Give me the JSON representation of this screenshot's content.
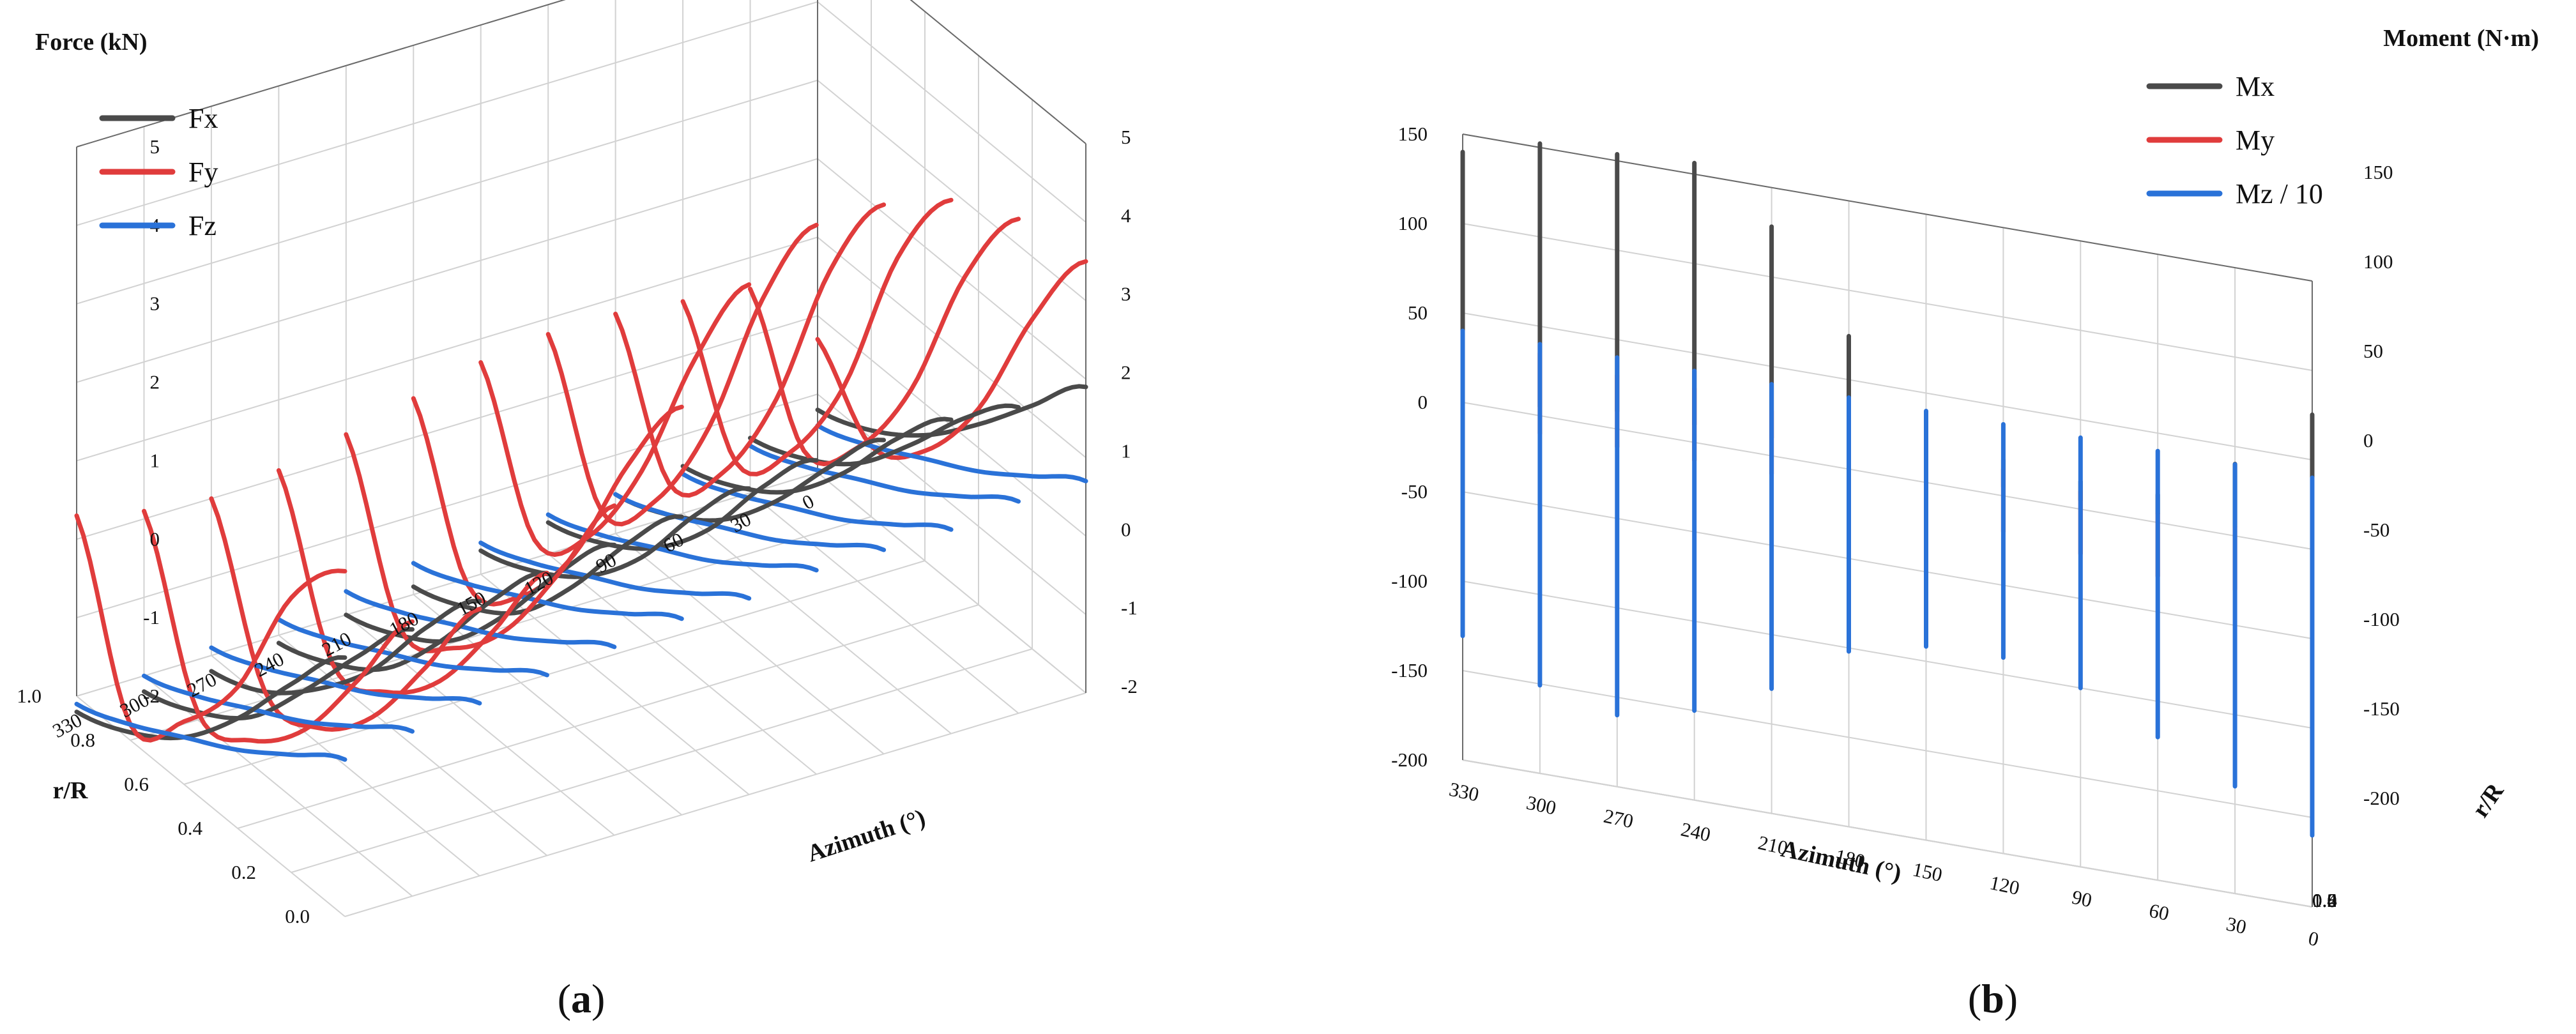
{
  "chart_data": [
    {
      "type": "line",
      "panel": "(a)",
      "panel_letter": "a",
      "zlabel": "Force (kN)",
      "xlabel": "r/R",
      "ylabel": "Azimuth (°)",
      "x_ticks": [
        "0.0",
        "0.2",
        "0.4",
        "0.6",
        "0.8",
        "1.0"
      ],
      "y_ticks": [
        "0",
        "30",
        "60",
        "90",
        "120",
        "150",
        "180",
        "210",
        "240",
        "270",
        "300",
        "330"
      ],
      "z_ticks": [
        "-2",
        "-1",
        "0",
        "1",
        "2",
        "3",
        "4",
        "5"
      ],
      "xlim": [
        0,
        1
      ],
      "ylim": [
        0,
        330
      ],
      "zlim": [
        -2,
        5
      ],
      "legend_position": "top-left",
      "azimuths": [
        330,
        300,
        270,
        240,
        210,
        180,
        150,
        120,
        90,
        60,
        30,
        0
      ],
      "r_over_R": [
        0.0,
        0.2,
        0.4,
        0.6,
        0.8,
        1.0
      ],
      "series": [
        {
          "name": "Fx",
          "color": "#4a4a4a",
          "profiles": [
            [
              1.3,
              0.4,
              -0.6,
              -1.4,
              -1.9,
              -2.2
            ],
            [
              1.4,
              0.5,
              -0.5,
              -1.4,
              -1.9,
              -2.2
            ],
            [
              1.5,
              0.6,
              -0.5,
              -1.3,
              -1.9,
              -2.2
            ],
            [
              1.6,
              0.7,
              -0.4,
              -1.3,
              -1.8,
              -2.1
            ],
            [
              1.7,
              0.8,
              -0.3,
              -1.2,
              -1.7,
              -2.0
            ],
            [
              1.8,
              0.9,
              -0.2,
              -1.1,
              -1.6,
              -1.9
            ],
            [
              1.9,
              1.0,
              -0.1,
              -0.9,
              -1.4,
              -1.7
            ],
            [
              2.0,
              1.1,
              0.0,
              -0.8,
              -1.3,
              -1.6
            ],
            [
              2.0,
              1.1,
              0.1,
              -0.7,
              -1.2,
              -1.5
            ],
            [
              2.0,
              1.2,
              0.2,
              -0.6,
              -1.1,
              -1.4
            ],
            [
              1.9,
              1.2,
              0.3,
              -0.5,
              -1.0,
              -1.3
            ],
            [
              1.9,
              1.1,
              0.3,
              -0.4,
              -0.9,
              -1.2
            ]
          ]
        },
        {
          "name": "Fy",
          "color": "#e03c3c",
          "profiles": [
            [
              2.4,
              1.5,
              -0.2,
              -1.2,
              -1.8,
              0.3
            ],
            [
              1.5,
              0.2,
              -1.0,
              -1.7,
              -1.9,
              0.1
            ],
            [
              1.4,
              0.1,
              -1.1,
              -1.8,
              -1.9,
              0.0
            ],
            [
              1.6,
              0.3,
              -0.9,
              -1.6,
              -1.8,
              0.1
            ],
            [
              2.2,
              0.8,
              -0.5,
              -1.3,
              -1.6,
              0.3
            ],
            [
              3.2,
              1.9,
              0.2,
              -0.9,
              -1.3,
              0.5
            ],
            [
              4.5,
              3.0,
              1.0,
              -0.4,
              -1.0,
              0.7
            ],
            [
              5.0,
              3.5,
              1.3,
              -0.2,
              -0.9,
              0.8
            ],
            [
              5.0,
              3.6,
              1.4,
              -0.1,
              -0.8,
              0.8
            ],
            [
              4.8,
              3.5,
              1.3,
              -0.1,
              -0.8,
              0.7
            ],
            [
              4.3,
              3.0,
              1.0,
              -0.3,
              -0.9,
              0.6
            ],
            [
              3.5,
              2.2,
              0.5,
              -0.6,
              -1.1,
              -0.3
            ]
          ]
        },
        {
          "name": "Fz",
          "color": "#2a72d8",
          "profiles": [
            [
              0.0,
              -0.5,
              -1.0,
              -1.4,
              -1.8,
              -2.1
            ],
            [
              0.1,
              -0.4,
              -0.9,
              -1.3,
              -1.7,
              -2.0
            ],
            [
              0.2,
              -0.3,
              -0.8,
              -1.2,
              -1.6,
              -1.9
            ],
            [
              0.3,
              -0.2,
              -0.7,
              -1.1,
              -1.5,
              -1.8
            ],
            [
              0.4,
              -0.1,
              -0.6,
              -1.0,
              -1.4,
              -1.7
            ],
            [
              0.5,
              0.0,
              -0.5,
              -0.9,
              -1.3,
              -1.6
            ],
            [
              0.5,
              0.0,
              -0.5,
              -0.9,
              -1.3,
              -1.6
            ],
            [
              0.6,
              0.1,
              -0.4,
              -0.8,
              -1.2,
              -1.5
            ],
            [
              0.6,
              0.1,
              -0.4,
              -0.8,
              -1.2,
              -1.5
            ],
            [
              0.6,
              0.1,
              -0.4,
              -0.8,
              -1.2,
              -1.5
            ],
            [
              0.7,
              0.2,
              -0.3,
              -0.7,
              -1.1,
              -1.4
            ],
            [
              0.7,
              0.2,
              -0.3,
              -0.7,
              -1.1,
              -1.4
            ]
          ]
        }
      ]
    },
    {
      "type": "line",
      "panel": "(b)",
      "panel_letter": "b",
      "zlabel": "Moment (N·m)",
      "xlabel": "r/R",
      "ylabel": "Azimuth (°)",
      "x_ticks": [
        "0.0",
        "0.2",
        "0.4",
        "0.6",
        "0.8",
        "1.0"
      ],
      "y_ticks": [
        "0",
        "30",
        "60",
        "90",
        "120",
        "150",
        "180",
        "210",
        "240",
        "270",
        "300",
        "330"
      ],
      "z_ticks_left": [
        "-200",
        "-150",
        "-100",
        "-50",
        "0",
        "50",
        "100",
        "150"
      ],
      "z_ticks_right": [
        "-200",
        "-150",
        "-100",
        "-50",
        "0",
        "50",
        "100",
        "150"
      ],
      "xlim": [
        0,
        1
      ],
      "ylim": [
        0,
        330
      ],
      "zlim": [
        -200,
        150
      ],
      "legend_position": "top-right",
      "azimuths": [
        330,
        300,
        270,
        240,
        210,
        180,
        150,
        120,
        90,
        60,
        30,
        0
      ],
      "r_over_R": [
        0.0,
        0.2,
        0.4,
        0.6,
        0.8,
        1.0
      ],
      "series": [
        {
          "name": "Mx",
          "color": "#4a4a4a",
          "profiles": [
            [
              0,
              40,
              90,
              140,
              60,
              20
            ],
            [
              5,
              60,
              120,
              150,
              60,
              20
            ],
            [
              10,
              70,
              130,
              150,
              60,
              20
            ],
            [
              10,
              70,
              140,
              150,
              60,
              20
            ],
            [
              10,
              60,
              120,
              120,
              50,
              20
            ],
            [
              10,
              40,
              70,
              70,
              30,
              10
            ],
            [
              10,
              20,
              30,
              30,
              10,
              5
            ],
            [
              10,
              15,
              20,
              15,
              10,
              5
            ],
            [
              5,
              10,
              15,
              15,
              10,
              5
            ],
            [
              5,
              10,
              15,
              15,
              10,
              5
            ],
            [
              5,
              15,
              30,
              40,
              20,
              5
            ],
            [
              5,
              20,
              50,
              75,
              30,
              5
            ]
          ]
        },
        {
          "name": "My",
          "color": "#e03c3c",
          "profiles": [
            [
              -10,
              10,
              20,
              25,
              30,
              35
            ],
            [
              -10,
              10,
              20,
              25,
              30,
              35
            ],
            [
              -10,
              5,
              15,
              20,
              25,
              30
            ],
            [
              -10,
              5,
              15,
              20,
              25,
              30
            ],
            [
              -10,
              0,
              10,
              15,
              20,
              25
            ],
            [
              -10,
              0,
              10,
              15,
              20,
              25
            ],
            [
              -15,
              -5,
              5,
              10,
              15,
              20
            ],
            [
              -20,
              -10,
              0,
              5,
              10,
              15
            ],
            [
              -25,
              -15,
              -5,
              0,
              5,
              10
            ],
            [
              -30,
              -20,
              -10,
              -5,
              0,
              5
            ],
            [
              -30,
              -20,
              -10,
              -5,
              0,
              5
            ],
            [
              -30,
              -20,
              -10,
              -5,
              0,
              5
            ]
          ]
        },
        {
          "name": "Mz / 10",
          "color": "#2a72d8",
          "profiles": [
            [
              -20,
              -60,
              -110,
              -130,
              -90,
              40
            ],
            [
              -30,
              -90,
              -150,
              -120,
              -60,
              40
            ],
            [
              -40,
              -110,
              -160,
              -110,
              -40,
              40
            ],
            [
              -40,
              -110,
              -150,
              -100,
              -40,
              40
            ],
            [
              -40,
              -100,
              -130,
              -80,
              -30,
              40
            ],
            [
              -40,
              -90,
              -100,
              -60,
              -20,
              40
            ],
            [
              -40,
              -80,
              -90,
              -50,
              -20,
              40
            ],
            [
              -40,
              -70,
              -90,
              -50,
              -20,
              40
            ],
            [
              -40,
              -70,
              -100,
              -60,
              -20,
              40
            ],
            [
              -40,
              -80,
              -120,
              -70,
              -20,
              40
            ],
            [
              -40,
              -90,
              -140,
              -90,
              -30,
              40
            ],
            [
              -40,
              -100,
              -160,
              -100,
              -40,
              40
            ]
          ]
        }
      ]
    }
  ]
}
